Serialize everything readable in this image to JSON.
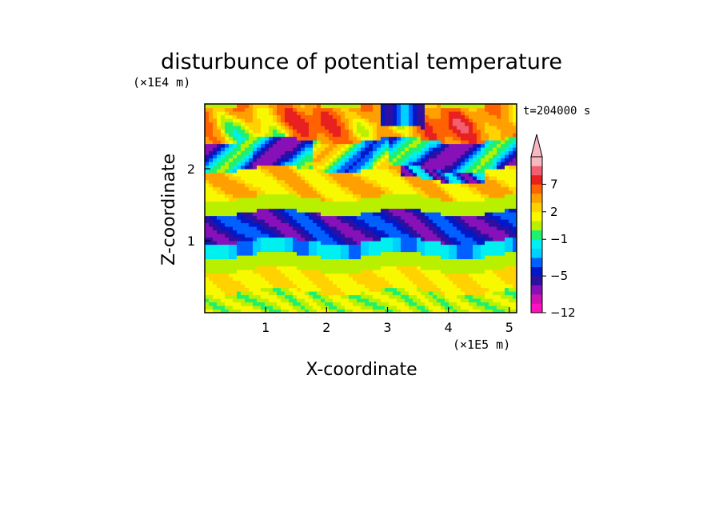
{
  "chart_data": {
    "type": "heatmap",
    "title": "disturbunce of potential temperature",
    "xlabel": "X-coordinate",
    "ylabel": "Z-coordinate",
    "x_unit": "(×1E5 m)",
    "y_unit": "(×1E4 m)",
    "time_label": "t=204000 s",
    "xlim": [
      0,
      5.12
    ],
    "ylim": [
      0,
      2.9
    ],
    "x_ticks": [
      1,
      2,
      3,
      4,
      5
    ],
    "y_ticks": [
      1,
      2
    ],
    "colorbar": {
      "tick_labels": [
        "7",
        "2",
        "−1",
        "−5",
        "−12"
      ],
      "tick_values": [
        7,
        2,
        -1,
        -5,
        -12
      ],
      "levels": [
        -12,
        -10,
        -8,
        -6,
        -5,
        -4,
        -3,
        -2,
        -1,
        0,
        1,
        2,
        3,
        5,
        7,
        9,
        11
      ],
      "colors": [
        "#ff10c0",
        "#d010b0",
        "#8810b8",
        "#2e10a0",
        "#0018c8",
        "#0060ff",
        "#00d0ff",
        "#00f0f0",
        "#20f070",
        "#b8f000",
        "#f8f800",
        "#ffd200",
        "#ffa000",
        "#ff6200",
        "#e82020",
        "#f06070",
        "#f8b8c0"
      ],
      "extend": "max"
    },
    "layers": [
      {
        "z_range": [
          0,
          0.3
        ],
        "value": 1.0,
        "description": "green band near surface"
      },
      {
        "z_range": [
          0.3,
          0.6
        ],
        "value": 2.5,
        "description": "yellow band"
      },
      {
        "z_range": [
          0.6,
          0.8
        ],
        "value": 0.5,
        "description": "green band"
      },
      {
        "z_range": [
          0.8,
          1.0
        ],
        "value": -2.5,
        "description": "cyan band"
      },
      {
        "z_range": [
          1.0,
          1.4
        ],
        "value": -5,
        "description": "blue band"
      },
      {
        "z_range": [
          1.4,
          1.6
        ],
        "value": 0.5,
        "description": "green band"
      },
      {
        "z_range": [
          1.6,
          2.0
        ],
        "value": 3,
        "description": "orange/yellow band"
      },
      {
        "z_range": [
          2.0,
          2.4
        ],
        "value": -4,
        "description": "blue tilted band"
      },
      {
        "z_range": [
          2.4,
          2.9
        ],
        "value": 5,
        "description": "orange/red top band"
      }
    ]
  }
}
